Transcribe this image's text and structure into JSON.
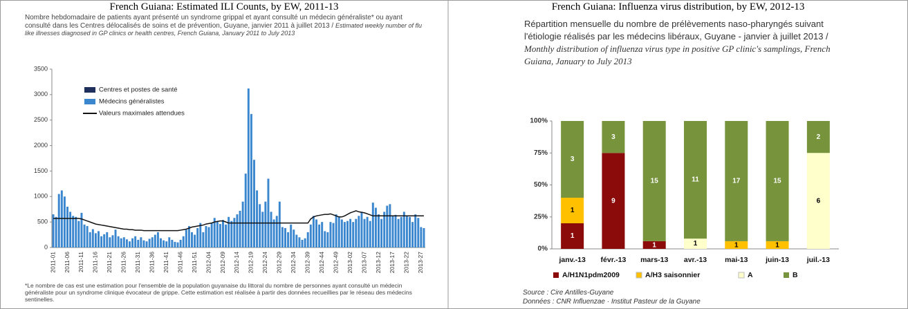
{
  "chart_data": [
    {
      "type": "bar",
      "title": "French Guiana: Estimated ILI Counts, by EW, 2011-13",
      "subtitle": "Nombre hebdomadaire de patients ayant présenté un syndrome grippal et ayant consulté un médecin généraliste* ou ayant consulté dans les Centres délocalisés de soins et de prévention, Guyane, janvier 2011 à juillet 2013 /",
      "subtitle_translation": "Estimated weekly number of flu like illnesses diagnosed in GP clinics or health centres, French Guiana, January 2011 to July 2013",
      "note": "*Le nombre de cas est une estimation pour l'ensemble de la population guyanaise du littoral du nombre de personnes ayant consulté un médecin généraliste pour un syndrome clinique évocateur de grippe. Cette estimation est réalisée à partir des données recueillies par le réseau des médecins sentinelles.",
      "categories": [
        "2011-01",
        null,
        null,
        null,
        null,
        "2011-06",
        null,
        null,
        null,
        null,
        "2011-11",
        null,
        null,
        null,
        null,
        "2011-16",
        null,
        null,
        null,
        null,
        "2011-21",
        null,
        null,
        null,
        null,
        "2011-26",
        null,
        null,
        null,
        null,
        "2011-31",
        null,
        null,
        null,
        null,
        "2011-36",
        null,
        null,
        null,
        null,
        "2011-41",
        null,
        null,
        null,
        null,
        "2011-46",
        null,
        null,
        null,
        null,
        "2011-51",
        null,
        null,
        null,
        null,
        "2012-04",
        null,
        null,
        null,
        null,
        "2012-09",
        null,
        null,
        null,
        null,
        "2012-14",
        null,
        null,
        null,
        null,
        "2012-19",
        null,
        null,
        null,
        null,
        "2012-24",
        null,
        null,
        null,
        null,
        "2012-29",
        null,
        null,
        null,
        null,
        "2012-34",
        null,
        null,
        null,
        null,
        "2012-39",
        null,
        null,
        null,
        null,
        "2012-44",
        null,
        null,
        null,
        null,
        "2012-49",
        null,
        null,
        null,
        null,
        "2013-02",
        null,
        null,
        null,
        null,
        "2013-07",
        null,
        null,
        null,
        null,
        "2013-12",
        null,
        null,
        null,
        null,
        "2013-17",
        null,
        null,
        null,
        null,
        "2013-22",
        null,
        null,
        null,
        null,
        "2013-27",
        null
      ],
      "series": [
        {
          "name": "Centres et postes de santé",
          "type": "bar",
          "color": "#1f2f5c",
          "values": [
            0,
            0,
            0,
            0,
            0,
            0,
            0,
            0,
            0,
            0,
            0,
            0,
            0,
            0,
            0,
            0,
            0,
            0,
            0,
            0,
            0,
            0,
            0,
            0,
            0,
            0,
            0,
            0,
            0,
            0,
            0,
            0,
            0,
            0,
            0,
            0,
            0,
            0,
            0,
            0,
            0,
            0,
            0,
            0,
            0,
            0,
            0,
            0,
            0,
            0,
            0,
            0,
            0,
            0,
            0,
            0,
            0,
            0,
            0,
            0,
            0,
            0,
            0,
            0,
            0,
            0,
            0,
            0,
            0,
            0,
            0,
            0,
            0,
            0,
            0,
            0,
            0,
            0,
            0,
            0,
            0,
            0,
            0,
            0,
            0,
            0,
            0,
            0,
            0,
            0,
            0,
            0,
            0,
            0,
            0,
            0,
            0,
            0,
            0,
            0,
            0,
            0,
            0,
            0,
            0,
            0,
            0,
            0,
            0,
            0,
            0,
            0,
            0,
            0,
            0,
            0,
            0,
            0,
            0,
            0,
            0,
            0,
            0,
            0,
            0,
            0,
            0,
            0,
            0,
            0,
            0,
            0
          ]
        },
        {
          "name": "Médecins généralistes",
          "type": "bar",
          "color": "#3a86cf",
          "values": [
            650,
            600,
            1050,
            1120,
            1000,
            800,
            700,
            620,
            600,
            520,
            680,
            450,
            420,
            300,
            360,
            280,
            320,
            220,
            260,
            300,
            200,
            240,
            350,
            220,
            180,
            200,
            160,
            120,
            180,
            220,
            150,
            200,
            140,
            120,
            170,
            200,
            250,
            300,
            180,
            140,
            120,
            200,
            150,
            110,
            100,
            150,
            220,
            350,
            420,
            300,
            250,
            380,
            480,
            300,
            420,
            400,
            480,
            580,
            520,
            460,
            540,
            450,
            600,
            520,
            580,
            650,
            720,
            900,
            1450,
            3120,
            2620,
            1720,
            1120,
            850,
            700,
            900,
            1350,
            700,
            550,
            620,
            900,
            400,
            380,
            300,
            450,
            350,
            250,
            200,
            150,
            180,
            300,
            450,
            620,
            550,
            450,
            500,
            320,
            300,
            500,
            480,
            650,
            600,
            550,
            500,
            520,
            560,
            500,
            560,
            620,
            700,
            560,
            600,
            520,
            880,
            780,
            650,
            560,
            700,
            820,
            850,
            620,
            640,
            560,
            600,
            700,
            620,
            600,
            500,
            650,
            580,
            400,
            380
          ]
        },
        {
          "name": "Valeurs maximales attendues",
          "type": "line",
          "color": "#111111",
          "values": [
            570,
            570,
            570,
            570,
            570,
            570,
            570,
            570,
            570,
            570,
            560,
            540,
            520,
            500,
            480,
            460,
            450,
            440,
            430,
            420,
            410,
            400,
            390,
            380,
            370,
            360,
            360,
            350,
            350,
            340,
            340,
            340,
            330,
            330,
            330,
            330,
            330,
            330,
            330,
            330,
            330,
            330,
            330,
            330,
            330,
            340,
            350,
            360,
            380,
            400,
            410,
            420,
            430,
            440,
            460,
            470,
            480,
            500,
            510,
            520,
            520,
            500,
            480,
            480,
            480,
            480,
            480,
            480,
            480,
            480,
            480,
            480,
            480,
            480,
            480,
            480,
            480,
            480,
            480,
            480,
            480,
            480,
            480,
            480,
            480,
            480,
            480,
            480,
            480,
            480,
            480,
            560,
            600,
            620,
            630,
            640,
            650,
            650,
            660,
            640,
            620,
            600,
            600,
            620,
            650,
            680,
            700,
            720,
            700,
            690,
            680,
            660,
            640,
            620,
            620,
            620,
            620,
            620,
            620,
            620,
            620,
            620,
            620,
            620,
            620,
            620,
            620,
            620,
            620,
            620,
            620,
            620
          ]
        }
      ],
      "ylim": [
        0,
        3500
      ],
      "yticks": [
        0,
        500,
        1000,
        1500,
        2000,
        2500,
        3000,
        3500
      ],
      "grid": false
    },
    {
      "type": "stacked_bar",
      "title": "French Guiana: Influenza virus distribution, by EW, 2012-13",
      "subtitle": "Répartition mensuelle du nombre de prélèvements naso-pharyngés suivant l'étiologie réalisés par les médecins libéraux, Guyane - janvier à juillet 2013 /",
      "subtitle_translation": "Monthly distribution of influenza virus type in positive GP clinic's samplings, French Guiana, January to July 2013",
      "source": "Source : Cire Antilles-Guyane",
      "data_source": "Données : CNR Influenzae · Institut Pasteur de la Guyane",
      "categories": [
        "janv.-13",
        "févr.-13",
        "mars-13",
        "avr.-13",
        "mai-13",
        "juin-13",
        "juil.-13"
      ],
      "series": [
        {
          "name": "A/H1N1pdm2009",
          "color": "#8b0a0a",
          "values": [
            20,
            75,
            6,
            null,
            null,
            null,
            null
          ],
          "counts": [
            1,
            9,
            1,
            null,
            null,
            null,
            null
          ]
        },
        {
          "name": "A/H3 saisonnier",
          "color": "#ffc000",
          "values": [
            20,
            null,
            null,
            null,
            6,
            6,
            null
          ],
          "counts": [
            1,
            null,
            null,
            null,
            1,
            1,
            null
          ]
        },
        {
          "name": "A",
          "color": "#ffffcc",
          "values": [
            null,
            null,
            null,
            8,
            null,
            null,
            75
          ],
          "counts": [
            null,
            null,
            null,
            1,
            null,
            null,
            6
          ]
        },
        {
          "name": "B",
          "color": "#77933c",
          "values": [
            60,
            25,
            94,
            92,
            94,
            94,
            25
          ],
          "counts": [
            3,
            3,
            15,
            11,
            17,
            15,
            2
          ]
        }
      ],
      "ylim": [
        0,
        100
      ],
      "yticks": [
        {
          "value": 0,
          "label": "0%"
        },
        {
          "value": 25,
          "label": "25%"
        },
        {
          "value": 50,
          "label": "50%"
        },
        {
          "value": 75,
          "label": "75%"
        },
        {
          "value": 100,
          "label": "100%"
        }
      ],
      "grid": false
    }
  ]
}
